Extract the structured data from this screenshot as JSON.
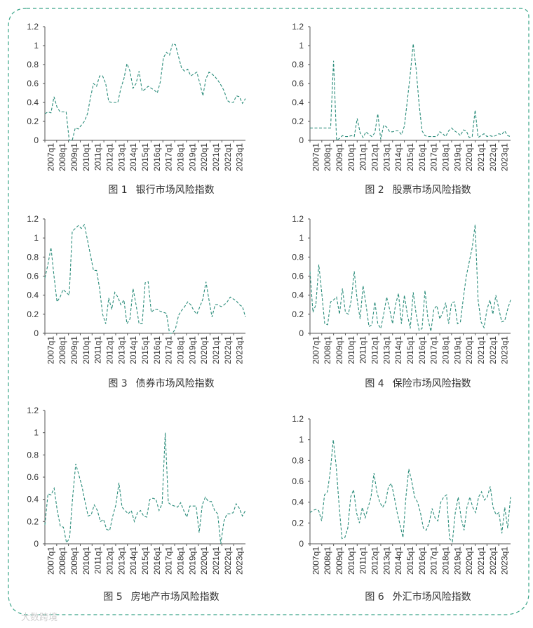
{
  "colors": {
    "series": "#2a8c7a",
    "frame": "#3aa589",
    "axis": "#555555"
  },
  "watermark": "大数跨境",
  "chart_data": [
    {
      "type": "line",
      "figure_label": "图 1",
      "title": "银行市场风险指数",
      "xlabel": "",
      "ylabel": "",
      "ylim": [
        0,
        1.2
      ],
      "yticks": [
        "0",
        "0.2",
        "0.4",
        "0.6",
        "0.8",
        "1",
        "1.2"
      ],
      "xticks": [
        "2007q1",
        "2008q1",
        "2009q1",
        "2010q1",
        "2011q1",
        "2012q1",
        "2013q1",
        "2014q1",
        "2015q1",
        "2016q1",
        "2017q1",
        "2018q1",
        "2019q1",
        "2020q1",
        "2021q1",
        "2022q1",
        "2023q1"
      ],
      "grid": false,
      "series": [
        {
          "values": [
            0.28,
            0.3,
            0.29,
            0.46,
            0.35,
            0.3,
            0.3,
            0.3,
            0.0,
            0.0,
            0.13,
            0.12,
            0.16,
            0.2,
            0.28,
            0.45,
            0.6,
            0.57,
            0.68,
            0.68,
            0.6,
            0.41,
            0.4,
            0.4,
            0.4,
            0.55,
            0.65,
            0.81,
            0.73,
            0.55,
            0.6,
            0.73,
            0.52,
            0.54,
            0.57,
            0.55,
            0.53,
            0.5,
            0.62,
            0.87,
            0.93,
            0.9,
            1.02,
            1.01,
            0.88,
            0.76,
            0.73,
            0.75,
            0.68,
            0.7,
            0.72,
            0.6,
            0.47,
            0.65,
            0.72,
            0.7,
            0.67,
            0.63,
            0.58,
            0.52,
            0.42,
            0.4,
            0.4,
            0.47,
            0.46,
            0.39,
            0.44
          ]
        }
      ]
    },
    {
      "type": "line",
      "figure_label": "图 2",
      "title": "股票市场风险指数",
      "xlabel": "",
      "ylabel": "",
      "ylim": [
        0,
        1.2
      ],
      "yticks": [
        "0",
        "0.2",
        "0.4",
        "0.6",
        "0.8",
        "1",
        "1.2"
      ],
      "xticks": [
        "2007q1",
        "2008q1",
        "2009q1",
        "2010q1",
        "2011q1",
        "2012q1",
        "2013q1",
        "2014q1",
        "2015q1",
        "2016q1",
        "2017q1",
        "2018q1",
        "2019q1",
        "2020q1",
        "2021q1",
        "2022q1",
        "2023q1"
      ],
      "grid": false,
      "series": [
        {
          "values": [
            0.13,
            0.13,
            0.13,
            0.13,
            0.13,
            0.13,
            0.13,
            0.13,
            0.84,
            0.0,
            0.02,
            0.05,
            0.04,
            0.04,
            0.05,
            0.04,
            0.23,
            0.08,
            0.03,
            0.09,
            0.06,
            0.04,
            0.08,
            0.28,
            0.01,
            0.16,
            0.14,
            0.09,
            0.09,
            0.1,
            0.1,
            0.06,
            0.15,
            0.42,
            0.7,
            1.02,
            0.75,
            0.38,
            0.1,
            0.05,
            0.04,
            0.04,
            0.04,
            0.04,
            0.09,
            0.07,
            0.04,
            0.1,
            0.13,
            0.1,
            0.08,
            0.05,
            0.11,
            0.1,
            0.03,
            0.04,
            0.32,
            0.03,
            0.05,
            0.07,
            0.04,
            0.05,
            0.04,
            0.05,
            0.07,
            0.06,
            0.1,
            0.05,
            0.04
          ]
        }
      ]
    },
    {
      "type": "line",
      "figure_label": "图 3",
      "title": "债券市场风险指数",
      "xlabel": "",
      "ylabel": "",
      "ylim": [
        0,
        1.2
      ],
      "yticks": [
        "0",
        "0.2",
        "0.4",
        "0.6",
        "0.8",
        "1",
        "1.2"
      ],
      "xticks": [
        "2007q1",
        "2008q1",
        "2009q1",
        "2010q1",
        "2011q1",
        "2012q1",
        "2013q1",
        "2014q1",
        "2015q1",
        "2016q1",
        "2017q1",
        "2018q1",
        "2019q1",
        "2020q1",
        "2021q1",
        "2022q1",
        "2023q1"
      ],
      "grid": false,
      "series": [
        {
          "values": [
            0.58,
            0.72,
            0.9,
            0.6,
            0.33,
            0.38,
            0.46,
            0.43,
            0.4,
            1.07,
            1.1,
            1.13,
            1.1,
            1.14,
            0.98,
            0.82,
            0.66,
            0.66,
            0.47,
            0.2,
            0.1,
            0.37,
            0.25,
            0.43,
            0.38,
            0.3,
            0.35,
            0.1,
            0.15,
            0.47,
            0.3,
            0.1,
            0.1,
            0.53,
            0.54,
            0.22,
            0.25,
            0.25,
            0.23,
            0.22,
            0.21,
            0.0,
            0.0,
            0.05,
            0.19,
            0.24,
            0.28,
            0.33,
            0.3,
            0.24,
            0.2,
            0.28,
            0.36,
            0.54,
            0.35,
            0.17,
            0.3,
            0.3,
            0.28,
            0.3,
            0.33,
            0.38,
            0.36,
            0.34,
            0.3,
            0.28,
            0.17
          ]
        }
      ]
    },
    {
      "type": "line",
      "figure_label": "图 4",
      "title": "保险市场风险指数",
      "xlabel": "",
      "ylabel": "",
      "ylim": [
        0,
        1.2
      ],
      "yticks": [
        "0",
        "0.2",
        "0.4",
        "0.6",
        "0.8",
        "1",
        "1.2"
      ],
      "xticks": [
        "2007q1",
        "2008q1",
        "2009q1",
        "2010q1",
        "2011q1",
        "2012q1",
        "2013q1",
        "2014q1",
        "2015q1",
        "2016q1",
        "2017q1",
        "2018q1",
        "2019q1",
        "2020q1",
        "2021q1",
        "2022q1",
        "2023q1"
      ],
      "grid": false,
      "series": [
        {
          "values": [
            0.65,
            0.22,
            0.3,
            0.72,
            0.42,
            0.1,
            0.09,
            0.33,
            0.35,
            0.38,
            0.2,
            0.47,
            0.22,
            0.2,
            0.35,
            0.65,
            0.35,
            0.15,
            0.5,
            0.3,
            0.07,
            0.09,
            0.33,
            0.1,
            0.05,
            0.2,
            0.38,
            0.25,
            0.1,
            0.3,
            0.42,
            0.1,
            0.4,
            0.2,
            0.05,
            0.43,
            0.2,
            0.03,
            0.05,
            0.45,
            0.15,
            0.02,
            0.25,
            0.29,
            0.15,
            0.22,
            0.32,
            0.1,
            0.32,
            0.33,
            0.1,
            0.12,
            0.37,
            0.6,
            0.75,
            0.9,
            1.14,
            0.35,
            0.12,
            0.06,
            0.25,
            0.35,
            0.2,
            0.4,
            0.26,
            0.12,
            0.13,
            0.25,
            0.35
          ]
        }
      ]
    },
    {
      "type": "line",
      "figure_label": "图 5",
      "title": "房地产市场风险指数",
      "xlabel": "",
      "ylabel": "",
      "ylim": [
        0,
        1.2
      ],
      "yticks": [
        "0",
        "0.2",
        "0.4",
        "0.6",
        "0.8",
        "1",
        "1.2"
      ],
      "xticks": [
        "2007q1",
        "2008q1",
        "2009q1",
        "2010q1",
        "2011q1",
        "2012q1",
        "2013q1",
        "2014q1",
        "2015q1",
        "2016q1",
        "2017q1",
        "2018q1",
        "2019q1",
        "2020q1",
        "2021q1",
        "2022q1",
        "2023q1"
      ],
      "grid": false,
      "series": [
        {
          "values": [
            0.17,
            0.45,
            0.44,
            0.5,
            0.3,
            0.16,
            0.15,
            0.01,
            0.05,
            0.42,
            0.72,
            0.62,
            0.52,
            0.38,
            0.25,
            0.26,
            0.35,
            0.3,
            0.2,
            0.22,
            0.13,
            0.12,
            0.25,
            0.35,
            0.55,
            0.33,
            0.3,
            0.27,
            0.3,
            0.2,
            0.28,
            0.3,
            0.25,
            0.24,
            0.4,
            0.41,
            0.4,
            0.3,
            0.36,
            1.0,
            0.37,
            0.35,
            0.34,
            0.33,
            0.37,
            0.3,
            0.24,
            0.34,
            0.34,
            0.34,
            0.1,
            0.35,
            0.42,
            0.38,
            0.38,
            0.3,
            0.27,
            0.0,
            0.2,
            0.27,
            0.27,
            0.28,
            0.36,
            0.32,
            0.25,
            0.3
          ]
        }
      ]
    },
    {
      "type": "line",
      "figure_label": "图 6",
      "title": "外汇市场风险指数",
      "xlabel": "",
      "ylabel": "",
      "ylim": [
        0,
        1.2
      ],
      "yticks": [
        "0",
        "0.2",
        "0.4",
        "0.6",
        "0.8",
        "1",
        "1.2"
      ],
      "xticks": [
        "2007q1",
        "2008q1",
        "2009q1",
        "2010q1",
        "2011q1",
        "2012q1",
        "2013q1",
        "2014q1",
        "2015q1",
        "2016q1",
        "2017q1",
        "2018q1",
        "2019q1",
        "2020q1",
        "2021q1",
        "2022q1",
        "2023q1"
      ],
      "grid": false,
      "series": [
        {
          "values": [
            0.3,
            0.32,
            0.33,
            0.32,
            0.22,
            0.47,
            0.5,
            0.7,
            1.0,
            0.75,
            0.38,
            0.05,
            0.06,
            0.15,
            0.45,
            0.52,
            0.3,
            0.2,
            0.35,
            0.25,
            0.35,
            0.45,
            0.68,
            0.5,
            0.4,
            0.35,
            0.4,
            0.55,
            0.58,
            0.45,
            0.3,
            0.18,
            0.06,
            0.45,
            0.72,
            0.6,
            0.45,
            0.4,
            0.3,
            0.15,
            0.13,
            0.2,
            0.34,
            0.25,
            0.22,
            0.4,
            0.45,
            0.47,
            0.05,
            0.02,
            0.3,
            0.45,
            0.25,
            0.13,
            0.35,
            0.45,
            0.35,
            0.3,
            0.45,
            0.5,
            0.42,
            0.45,
            0.55,
            0.35,
            0.28,
            0.3,
            0.1,
            0.35,
            0.15,
            0.45
          ]
        }
      ]
    }
  ]
}
